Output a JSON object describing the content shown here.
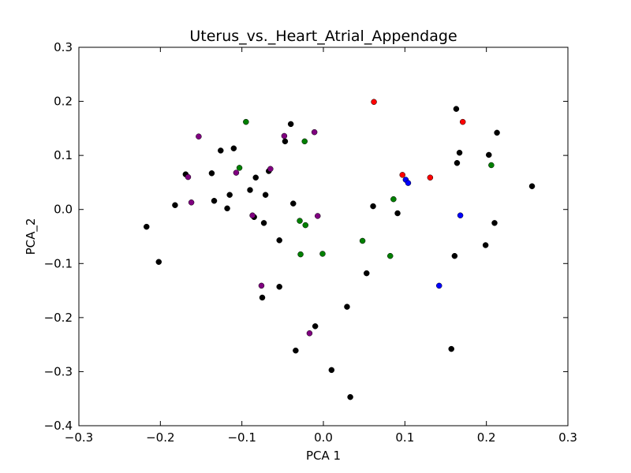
{
  "chart_data": {
    "type": "scatter",
    "title": "Uterus_vs._Heart_Atrial_Appendage",
    "xlabel": "PCA 1",
    "ylabel": "PCA_2",
    "xlim": [
      -0.3,
      0.3
    ],
    "ylim": [
      -0.4,
      0.3
    ],
    "xticks": [
      -0.3,
      -0.2,
      -0.1,
      0.0,
      0.1,
      0.2,
      0.3
    ],
    "yticks": [
      -0.4,
      -0.3,
      -0.2,
      -0.1,
      0.0,
      0.1,
      0.2,
      0.3
    ],
    "xtick_labels": [
      "−0.3",
      "−0.2",
      "−0.1",
      "0.0",
      "0.1",
      "0.2",
      "0.3"
    ],
    "ytick_labels": [
      "−0.4",
      "−0.3",
      "−0.2",
      "−0.1",
      "0.0",
      "0.1",
      "0.2",
      "0.3"
    ],
    "grid": false,
    "series": [
      {
        "color": "#000000",
        "points": [
          [
            -0.217,
            -0.032
          ],
          [
            -0.202,
            -0.097
          ],
          [
            -0.182,
            0.008
          ],
          [
            -0.169,
            0.065
          ],
          [
            -0.137,
            0.067
          ],
          [
            -0.134,
            0.016
          ],
          [
            -0.126,
            0.109
          ],
          [
            -0.118,
            0.002
          ],
          [
            -0.115,
            0.027
          ],
          [
            -0.11,
            0.113
          ],
          [
            -0.09,
            0.036
          ],
          [
            -0.085,
            -0.014
          ],
          [
            -0.083,
            0.059
          ],
          [
            -0.075,
            -0.163
          ],
          [
            -0.073,
            -0.025
          ],
          [
            -0.071,
            0.027
          ],
          [
            -0.067,
            0.071
          ],
          [
            -0.054,
            -0.057
          ],
          [
            -0.054,
            -0.143
          ],
          [
            -0.047,
            0.126
          ],
          [
            -0.04,
            0.158
          ],
          [
            -0.037,
            0.011
          ],
          [
            -0.034,
            -0.261
          ],
          [
            -0.01,
            -0.216
          ],
          [
            0.01,
            -0.297
          ],
          [
            0.029,
            -0.18
          ],
          [
            0.033,
            -0.347
          ],
          [
            0.053,
            -0.118
          ],
          [
            0.061,
            0.006
          ],
          [
            0.091,
            -0.007
          ],
          [
            0.157,
            -0.258
          ],
          [
            0.161,
            -0.086
          ],
          [
            0.163,
            0.186
          ],
          [
            0.164,
            0.086
          ],
          [
            0.167,
            0.105
          ],
          [
            0.199,
            -0.066
          ],
          [
            0.203,
            0.101
          ],
          [
            0.21,
            -0.025
          ],
          [
            0.213,
            0.142
          ],
          [
            0.256,
            0.043
          ]
        ]
      },
      {
        "color": "#800080",
        "points": [
          [
            -0.166,
            0.06
          ],
          [
            -0.162,
            0.013
          ],
          [
            -0.153,
            0.135
          ],
          [
            -0.107,
            0.068
          ],
          [
            -0.087,
            -0.011
          ],
          [
            -0.076,
            -0.141
          ],
          [
            -0.065,
            0.075
          ],
          [
            -0.048,
            0.136
          ],
          [
            -0.017,
            -0.229
          ],
          [
            -0.011,
            0.143
          ],
          [
            -0.007,
            -0.012
          ]
        ]
      },
      {
        "color": "#008000",
        "points": [
          [
            -0.103,
            0.077
          ],
          [
            -0.095,
            0.162
          ],
          [
            -0.029,
            -0.021
          ],
          [
            -0.028,
            -0.083
          ],
          [
            -0.023,
            0.126
          ],
          [
            -0.022,
            -0.029
          ],
          [
            -0.001,
            -0.082
          ],
          [
            0.048,
            -0.058
          ],
          [
            0.082,
            -0.086
          ],
          [
            0.086,
            0.019
          ],
          [
            0.206,
            0.082
          ]
        ]
      },
      {
        "color": "#ff0000",
        "points": [
          [
            0.062,
            0.199
          ],
          [
            0.097,
            0.064
          ],
          [
            0.131,
            0.059
          ],
          [
            0.171,
            0.162
          ]
        ]
      },
      {
        "color": "#0000ff",
        "points": [
          [
            0.101,
            0.055
          ],
          [
            0.104,
            0.049
          ],
          [
            0.142,
            -0.141
          ],
          [
            0.168,
            -0.011
          ]
        ]
      }
    ]
  }
}
